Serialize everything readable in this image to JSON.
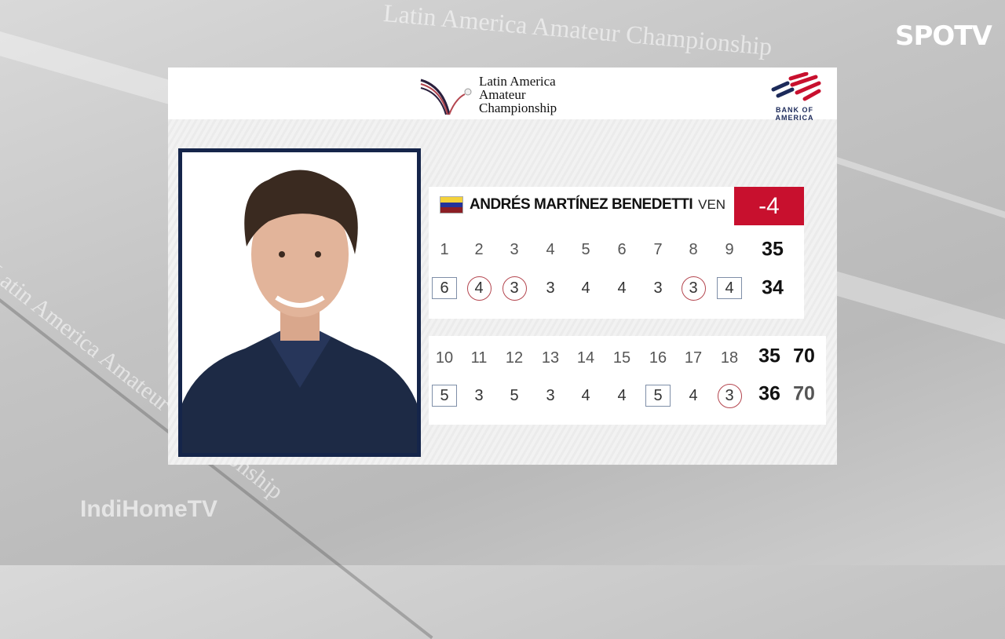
{
  "broadcaster": "SPOTV",
  "watermark": "IndiHomeTV",
  "background_text": [
    "Latin America Amateur Championship",
    "Latin America Amateur Championship"
  ],
  "event": {
    "line1": "Latin America",
    "line2": "Amateur",
    "line3": "Championship"
  },
  "sponsor": "BANK OF AMERICA",
  "colors": {
    "accent_red": "#c8102e",
    "navy": "#15254a",
    "bogey_box": "#7f8fa8",
    "birdie_circle": "#b4464f"
  },
  "player": {
    "name": "ANDRÉS MARTÍNEZ BENEDETTI",
    "country": "VEN",
    "flag": "venezuela-flag",
    "to_par": "-4"
  },
  "front_nine": {
    "holes": [
      "1",
      "2",
      "3",
      "4",
      "5",
      "6",
      "7",
      "8",
      "9"
    ],
    "pars": [],
    "scores": [
      {
        "v": "6",
        "t": "bogey"
      },
      {
        "v": "4",
        "t": "birdie"
      },
      {
        "v": "3",
        "t": "birdie"
      },
      {
        "v": "3",
        "t": ""
      },
      {
        "v": "4",
        "t": ""
      },
      {
        "v": "4",
        "t": ""
      },
      {
        "v": "3",
        "t": ""
      },
      {
        "v": "3",
        "t": "birdie"
      },
      {
        "v": "4",
        "t": "bogey"
      }
    ],
    "par_total": "35",
    "score_total": "34"
  },
  "back_nine": {
    "holes": [
      "10",
      "11",
      "12",
      "13",
      "14",
      "15",
      "16",
      "17",
      "18"
    ],
    "scores": [
      {
        "v": "5",
        "t": "bogey"
      },
      {
        "v": "3",
        "t": ""
      },
      {
        "v": "5",
        "t": ""
      },
      {
        "v": "3",
        "t": ""
      },
      {
        "v": "4",
        "t": ""
      },
      {
        "v": "4",
        "t": ""
      },
      {
        "v": "5",
        "t": "bogey"
      },
      {
        "v": "4",
        "t": ""
      },
      {
        "v": "3",
        "t": "birdie"
      }
    ],
    "par_total": "35",
    "score_total": "36",
    "course_par": "70",
    "round_total": "70"
  }
}
